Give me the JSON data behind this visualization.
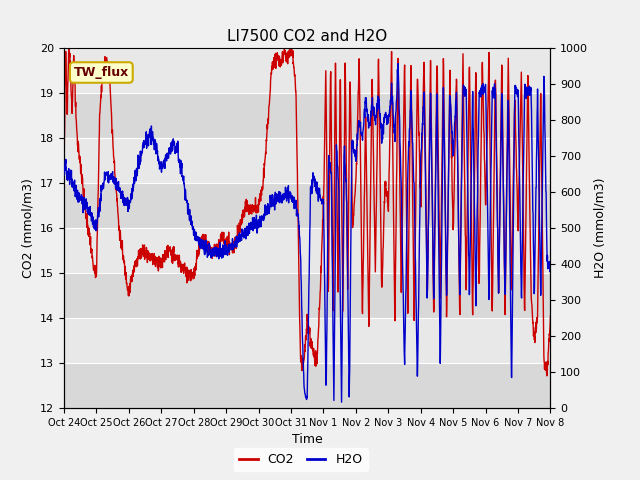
{
  "title": "LI7500 CO2 and H2O",
  "xlabel": "Time",
  "ylabel_left": "CO2 (mmol/m3)",
  "ylabel_right": "H2O (mmol/m3)",
  "annotation": "TW_flux",
  "x_tick_labels": [
    "Oct 24",
    "Oct 25",
    "Oct 26",
    "Oct 27",
    "Oct 28",
    "Oct 29",
    "Oct 30",
    "Oct 31",
    "Nov 1",
    "Nov 2",
    "Nov 3",
    "Nov 4",
    "Nov 5",
    "Nov 6",
    "Nov 7",
    "Nov 8"
  ],
  "ylim_left": [
    12.0,
    20.0
  ],
  "ylim_right": [
    0,
    1000
  ],
  "yticks_left": [
    12.0,
    13.0,
    14.0,
    15.0,
    16.0,
    17.0,
    18.0,
    19.0,
    20.0
  ],
  "yticks_right": [
    0,
    100,
    200,
    300,
    400,
    500,
    600,
    700,
    800,
    900,
    1000
  ],
  "co2_color": "#cc0000",
  "h2o_color": "#0000cc",
  "bg_light": "#d8d8d8",
  "bg_dark": "#c8c8c8",
  "fig_bg": "#f0f0f0",
  "legend_co2": "CO2",
  "legend_h2o": "H2O",
  "title_fontsize": 11,
  "axis_fontsize": 9,
  "tick_fontsize": 8,
  "legend_fontsize": 9,
  "linewidth": 1.0
}
